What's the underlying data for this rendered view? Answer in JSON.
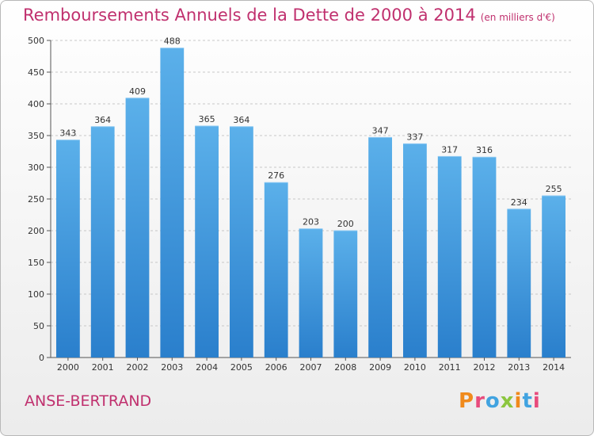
{
  "title": "Remboursements Annuels de la Dette de 2000 à 2014",
  "subtitle": "(en milliers d'€)",
  "commune": "ANSE-BERTRAND",
  "logo": {
    "letters": [
      "P",
      "r",
      "o",
      "x",
      "i",
      "t",
      "i"
    ],
    "colors": [
      "#f08a1c",
      "#e84b7c",
      "#41a3e0",
      "#8cc63f",
      "#f08a1c",
      "#41a3e0",
      "#e84b7c"
    ]
  },
  "colors": {
    "title": "#c0306e",
    "bar_light": "#5bb0ea",
    "bar_dark": "#2a7fcc",
    "axis": "#555555",
    "grid": "#c8c8c8"
  },
  "chart_data": {
    "type": "bar",
    "categories": [
      "2000",
      "2001",
      "2002",
      "2003",
      "2004",
      "2005",
      "2006",
      "2007",
      "2008",
      "2009",
      "2010",
      "2011",
      "2012",
      "2013",
      "2014"
    ],
    "values": [
      343,
      364,
      409,
      488,
      365,
      364,
      276,
      203,
      200,
      347,
      337,
      317,
      316,
      234,
      255
    ],
    "ylim": [
      0,
      500
    ],
    "yticks": [
      0,
      50,
      100,
      150,
      200,
      250,
      300,
      350,
      400,
      450,
      500
    ],
    "grid": true
  }
}
